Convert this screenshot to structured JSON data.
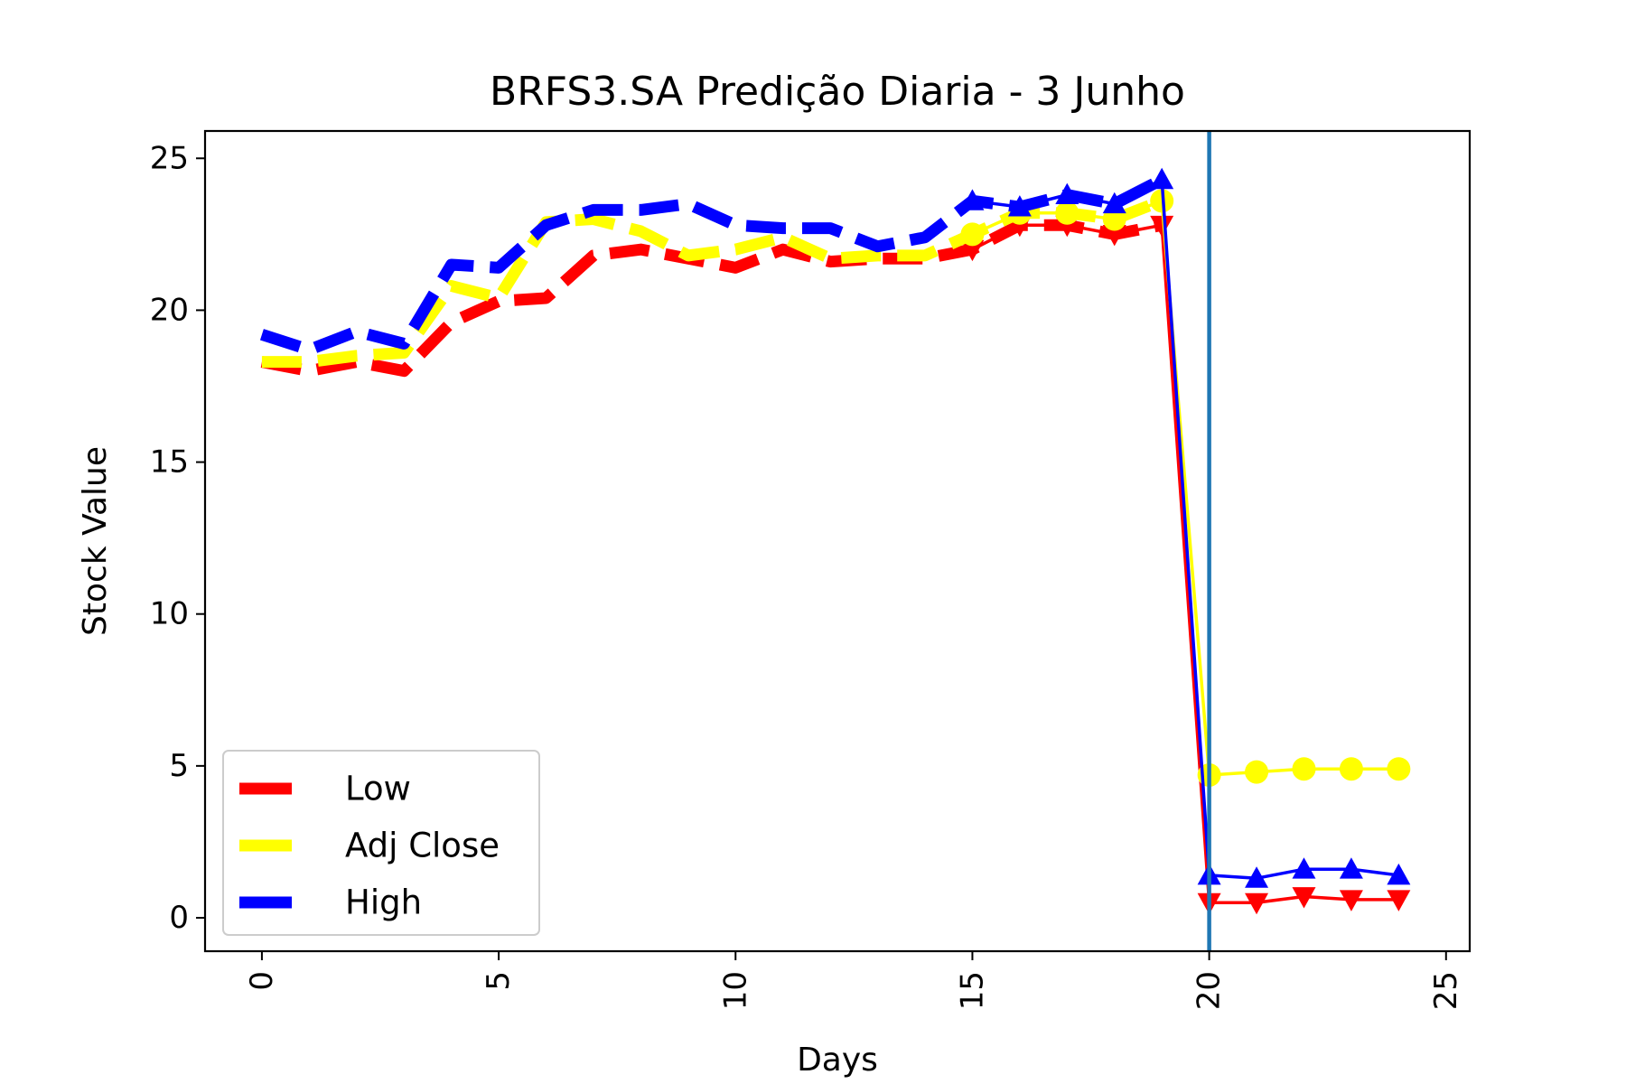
{
  "chart_data": {
    "type": "line",
    "title": "BRFS3.SA Predição Diaria - 3 Junho",
    "xlabel": "Days",
    "ylabel": "Stock Value",
    "xlim": [
      -1.2,
      25.5
    ],
    "ylim": [
      -1.1,
      25.9
    ],
    "xticks": [
      0,
      5,
      10,
      15,
      20,
      25
    ],
    "yticks": [
      0,
      5,
      10,
      15,
      20,
      25
    ],
    "x_tick_rotation": 90,
    "grid": false,
    "legend_position": "lower-left",
    "vertical_line": {
      "x": 20,
      "color": "#1f77b4"
    },
    "series": [
      {
        "name": "Low",
        "color": "#ff0000",
        "history": {
          "x": [
            0,
            1,
            2,
            3,
            4,
            5,
            6,
            7,
            8,
            9,
            10,
            11,
            12,
            13,
            14,
            15,
            16,
            17,
            18,
            19
          ],
          "y": [
            18.3,
            18.0,
            18.3,
            18.0,
            19.6,
            20.3,
            20.4,
            21.8,
            22.0,
            21.7,
            21.4,
            22.0,
            21.6,
            21.7,
            21.7,
            22.0,
            22.8,
            22.8,
            22.5,
            22.8
          ]
        },
        "history_markers_from_x": 15,
        "marker": "triangle-down",
        "prediction": {
          "x": [
            20,
            21,
            22,
            23,
            24
          ],
          "y": [
            0.5,
            0.5,
            0.7,
            0.6,
            0.6
          ]
        }
      },
      {
        "name": "Adj Close",
        "color": "#ffff00",
        "history": {
          "x": [
            0,
            1,
            2,
            3,
            4,
            5,
            6,
            7,
            8,
            9,
            10,
            11,
            12,
            13,
            14,
            15,
            16,
            17,
            18,
            19
          ],
          "y": [
            18.3,
            18.3,
            18.5,
            18.6,
            20.8,
            20.4,
            22.9,
            23.0,
            22.6,
            21.8,
            22.0,
            22.4,
            21.7,
            21.8,
            21.8,
            22.5,
            23.2,
            23.2,
            23.0,
            23.6
          ]
        },
        "history_markers_from_x": 15,
        "marker": "circle",
        "prediction": {
          "x": [
            20,
            21,
            22,
            23,
            24
          ],
          "y": [
            4.7,
            4.8,
            4.9,
            4.9,
            4.9
          ]
        }
      },
      {
        "name": "High",
        "color": "#0000ff",
        "history": {
          "x": [
            0,
            1,
            2,
            3,
            4,
            5,
            6,
            7,
            8,
            9,
            10,
            11,
            12,
            13,
            14,
            15,
            16,
            17,
            18,
            19
          ],
          "y": [
            19.2,
            18.7,
            19.3,
            18.9,
            21.5,
            21.4,
            22.8,
            23.3,
            23.3,
            23.5,
            22.8,
            22.7,
            22.7,
            22.1,
            22.4,
            23.6,
            23.4,
            23.8,
            23.5,
            24.3
          ]
        },
        "history_markers_from_x": 15,
        "marker": "triangle-up",
        "prediction": {
          "x": [
            20,
            21,
            22,
            23,
            24
          ],
          "y": [
            1.4,
            1.3,
            1.6,
            1.6,
            1.4
          ]
        }
      }
    ]
  }
}
